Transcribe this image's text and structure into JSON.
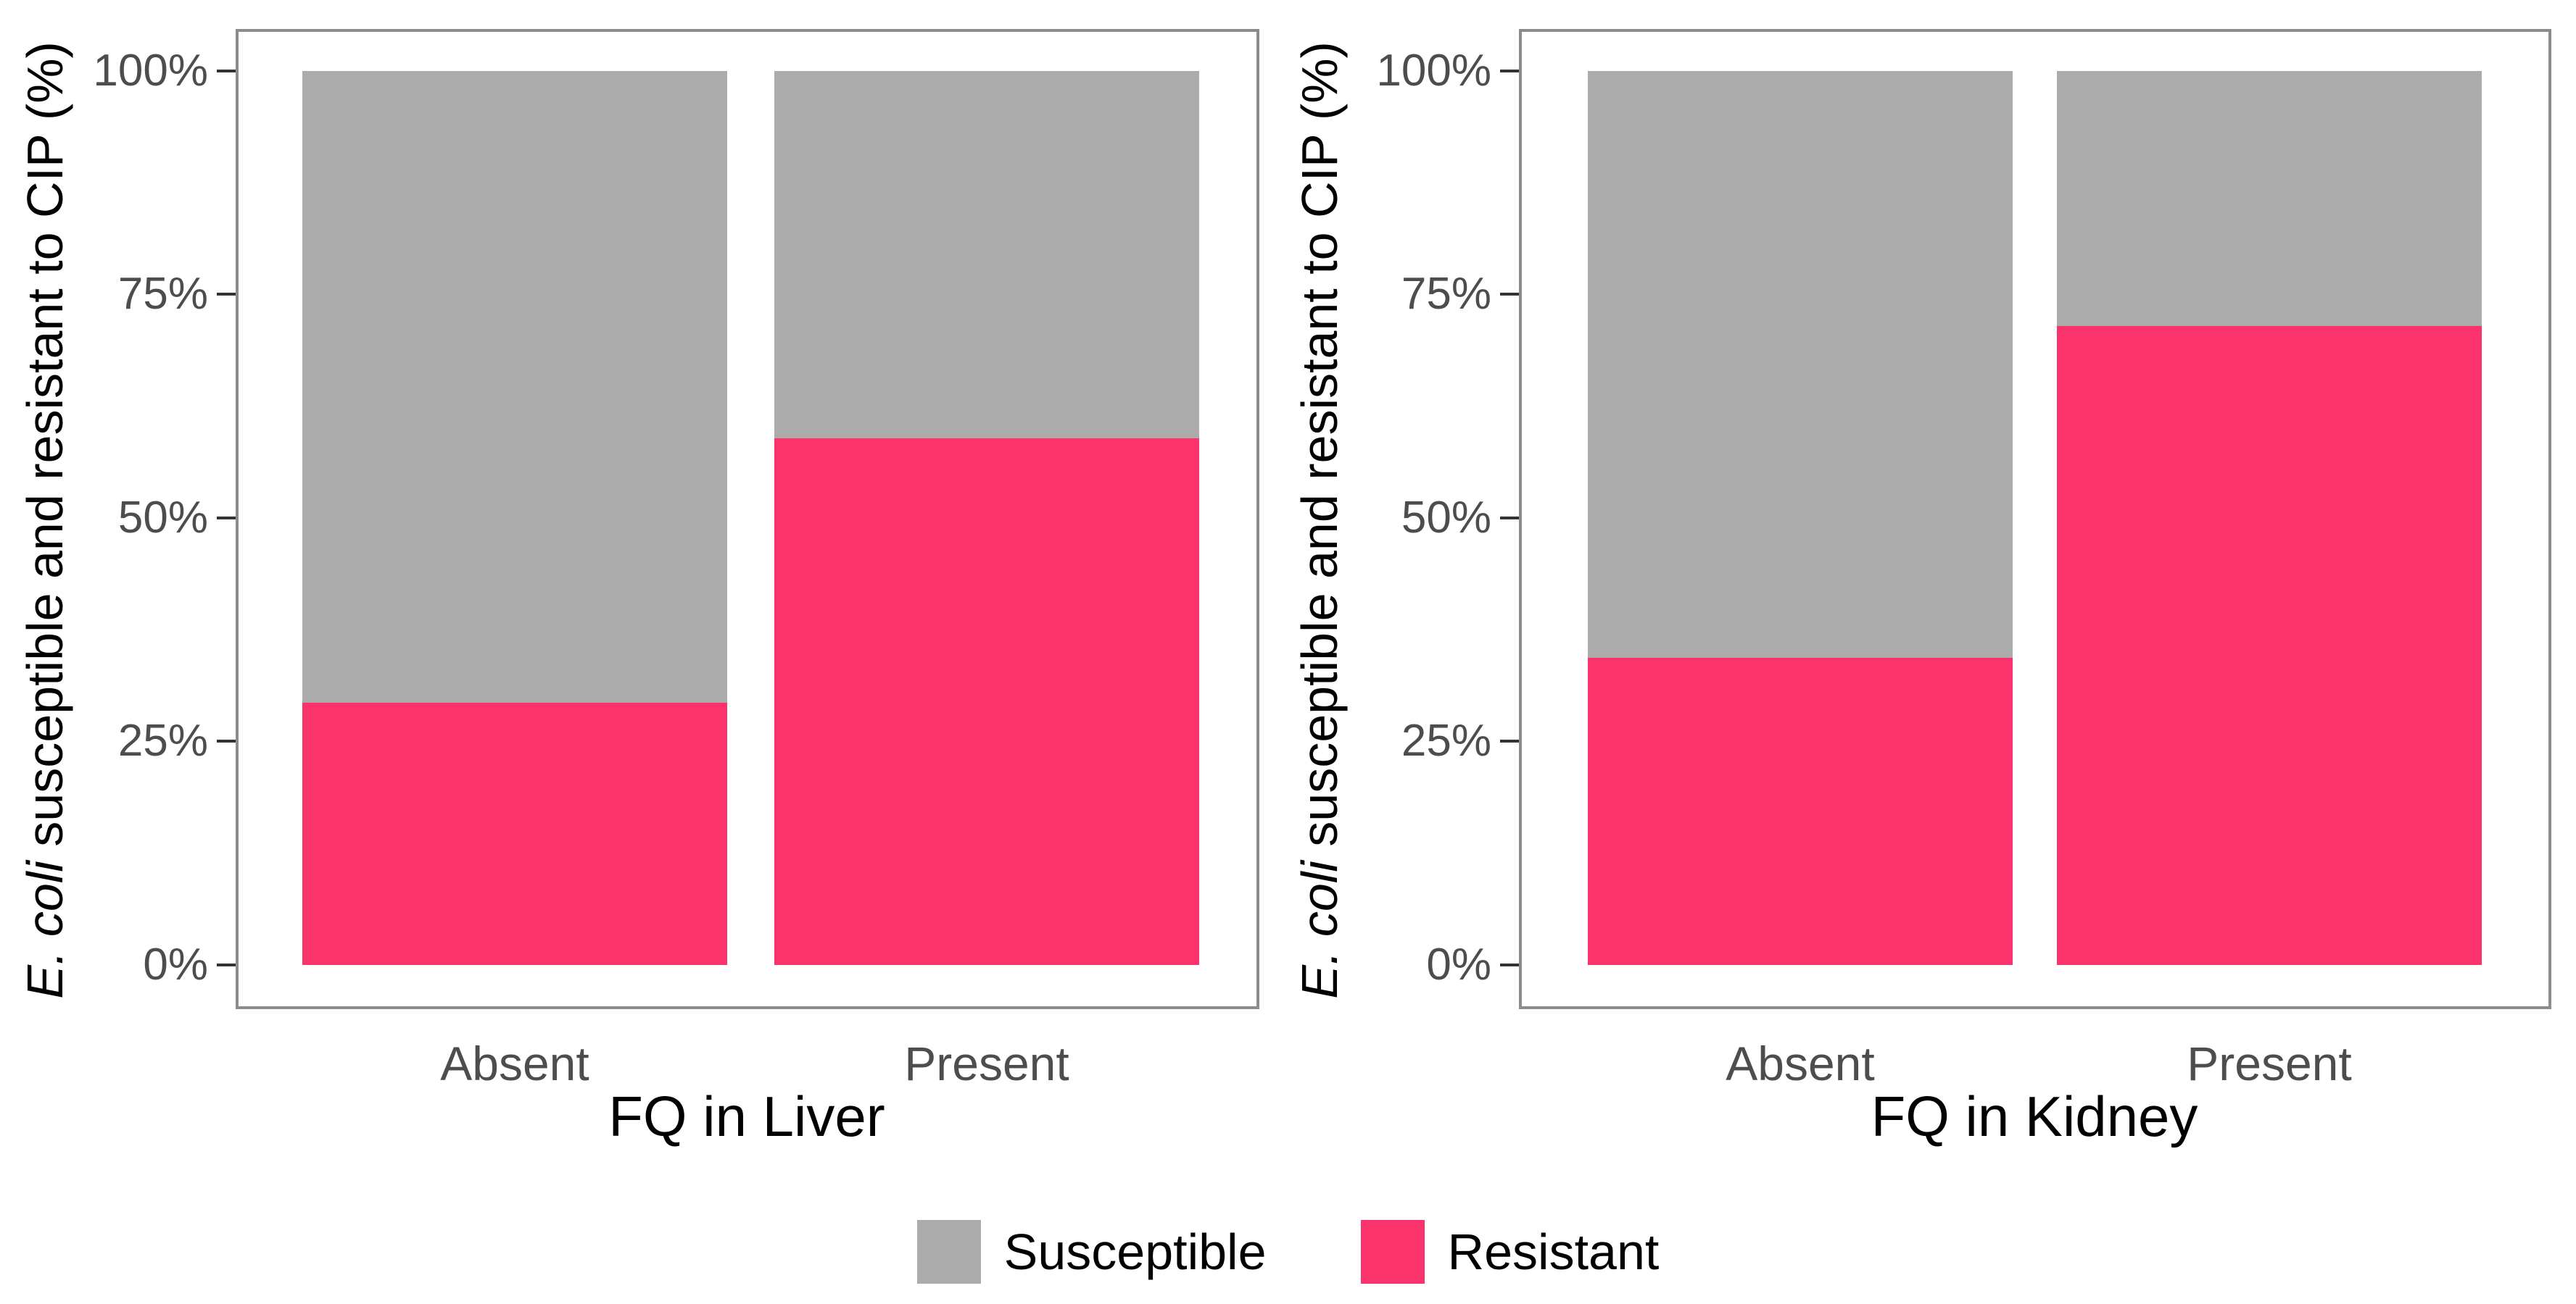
{
  "colors": {
    "susceptible": "#ababab",
    "resistant": "#fa336c",
    "panel_border": "#8c8c8c",
    "tick": "#333333",
    "tick_label": "#4d4d4d",
    "axis_title": "#000000",
    "legend_text": "#000000",
    "background": "#ffffff"
  },
  "y_axis": {
    "title_italic": "E. coli",
    "title_rest": " susceptible and resistant to CIP (%)",
    "tick_labels": [
      "0%",
      "25%",
      "50%",
      "75%",
      "100%"
    ]
  },
  "legend": {
    "items": [
      {
        "label": "Susceptible",
        "color_key": "susceptible"
      },
      {
        "label": "Resistant",
        "color_key": "resistant"
      }
    ],
    "position": "bottom"
  },
  "chart_data": [
    {
      "type": "bar",
      "stacked": true,
      "percent": true,
      "xlabel": "FQ in Liver",
      "ylabel": "E. coli susceptible and resistant to CIP (%)",
      "categories": [
        "Absent",
        "Present"
      ],
      "series": [
        {
          "name": "Susceptible",
          "color": "#ababab",
          "values": [
            70.7,
            41.1
          ]
        },
        {
          "name": "Resistant",
          "color": "#fa336c",
          "values": [
            29.3,
            58.9
          ]
        }
      ],
      "ylim": [
        0,
        100
      ],
      "yticks": [
        "0%",
        "25%",
        "50%",
        "75%",
        "100%"
      ],
      "grid": false,
      "legend_position": "bottom"
    },
    {
      "type": "bar",
      "stacked": true,
      "percent": true,
      "xlabel": "FQ in Kidney",
      "ylabel": "E. coli susceptible and resistant to CIP (%)",
      "categories": [
        "Absent",
        "Present"
      ],
      "series": [
        {
          "name": "Susceptible",
          "color": "#ababab",
          "values": [
            65.6,
            28.5
          ]
        },
        {
          "name": "Resistant",
          "color": "#fa336c",
          "values": [
            34.4,
            71.5
          ]
        }
      ],
      "ylim": [
        0,
        100
      ],
      "yticks": [
        "0%",
        "25%",
        "50%",
        "75%",
        "100%"
      ],
      "grid": false,
      "legend_position": "bottom"
    }
  ]
}
